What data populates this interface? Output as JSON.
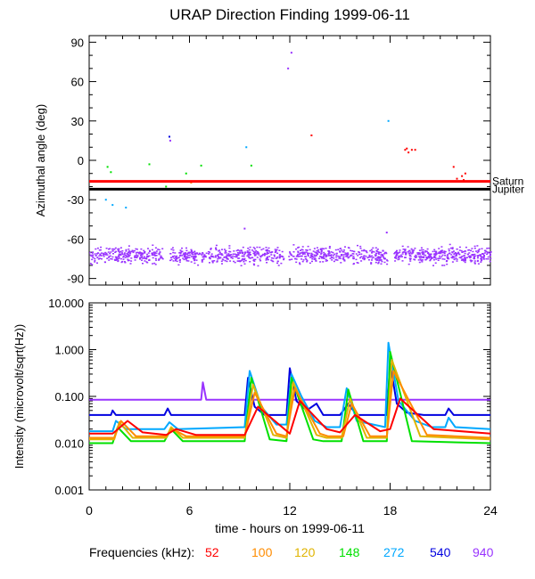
{
  "title": "URAP Direction Finding  1999-06-11",
  "xaxis": {
    "label": "time - hours on 1999-06-11",
    "range": [
      0,
      24
    ],
    "ticks": [
      0,
      6,
      12,
      18,
      24
    ],
    "tick_labels": [
      "0",
      "6",
      "12",
      "18",
      "24"
    ]
  },
  "legend": {
    "label": "Frequencies (kHz):",
    "items": [
      {
        "label": "52",
        "color": "#ff0000"
      },
      {
        "label": "100",
        "color": "#ff8c00"
      },
      {
        "label": "120",
        "color": "#e0b400"
      },
      {
        "label": "148",
        "color": "#00e000"
      },
      {
        "label": "272",
        "color": "#00a8ff"
      },
      {
        "label": "540",
        "color": "#0000e0"
      },
      {
        "label": "940",
        "color": "#9933ff"
      }
    ]
  },
  "chart_data": [
    {
      "type": "scatter",
      "panel": "top",
      "ylabel": "Azimuthal angle (deg)",
      "xlim": [
        0,
        24
      ],
      "ylim": [
        -95,
        95
      ],
      "yticks": [
        90,
        60,
        30,
        0,
        -30,
        -60,
        -90
      ],
      "ytick_labels": [
        "90",
        "60",
        "30",
        "0",
        "-30",
        "-60",
        "-90"
      ],
      "reference_lines": [
        {
          "name": "Saturn",
          "label": "Saturn",
          "y": -16,
          "color": "#ff0000"
        },
        {
          "name": "Jupiter",
          "label": "Jupiter",
          "y": -22,
          "color": "#000000"
        }
      ],
      "band": {
        "series": "940",
        "x_range": [
          0,
          24
        ],
        "y_center": -72,
        "y_spread": 6,
        "color": "#9933ff"
      },
      "points": [
        {
          "x": 1.1,
          "y": -5,
          "series": "148"
        },
        {
          "x": 1.3,
          "y": -9,
          "series": "148"
        },
        {
          "x": 1.0,
          "y": -30,
          "series": "272"
        },
        {
          "x": 1.4,
          "y": -34,
          "series": "272"
        },
        {
          "x": 2.2,
          "y": -36,
          "series": "272"
        },
        {
          "x": 2.0,
          "y": -22,
          "series": "272"
        },
        {
          "x": 3.6,
          "y": -3,
          "series": "148"
        },
        {
          "x": 4.6,
          "y": -20,
          "series": "148"
        },
        {
          "x": 4.8,
          "y": 18,
          "series": "540"
        },
        {
          "x": 4.85,
          "y": 15,
          "series": "940"
        },
        {
          "x": 5.8,
          "y": -10,
          "series": "148"
        },
        {
          "x": 6.1,
          "y": -17,
          "series": "100"
        },
        {
          "x": 6.7,
          "y": -4,
          "series": "148"
        },
        {
          "x": 9.3,
          "y": -52,
          "series": "940"
        },
        {
          "x": 9.4,
          "y": 10,
          "series": "272"
        },
        {
          "x": 9.7,
          "y": -4,
          "series": "148"
        },
        {
          "x": 11.9,
          "y": 70,
          "series": "940"
        },
        {
          "x": 12.1,
          "y": 82,
          "series": "940"
        },
        {
          "x": 13.3,
          "y": 19,
          "series": "52"
        },
        {
          "x": 17.9,
          "y": 30,
          "series": "272"
        },
        {
          "x": 17.8,
          "y": -55,
          "series": "940"
        },
        {
          "x": 18.9,
          "y": 8,
          "series": "52"
        },
        {
          "x": 19.1,
          "y": 6,
          "series": "52"
        },
        {
          "x": 19.3,
          "y": 8,
          "series": "52"
        },
        {
          "x": 19.5,
          "y": 8,
          "series": "52"
        },
        {
          "x": 19.0,
          "y": 9,
          "series": "52"
        },
        {
          "x": 21.8,
          "y": -5,
          "series": "52"
        },
        {
          "x": 22.3,
          "y": -12,
          "series": "52"
        },
        {
          "x": 22.5,
          "y": -10,
          "series": "52"
        },
        {
          "x": 22.4,
          "y": -15,
          "series": "52"
        },
        {
          "x": 22.0,
          "y": -14,
          "series": "52"
        }
      ]
    },
    {
      "type": "line",
      "panel": "bottom",
      "ylabel": "Intensity (microvolt/sqrt(Hz))",
      "yscale": "log",
      "xlim": [
        0,
        24
      ],
      "ylim": [
        0.001,
        10
      ],
      "yticks": [
        10,
        1,
        0.1,
        0.01,
        0.001
      ],
      "ytick_labels": [
        "10.000",
        "1.000",
        "0.100",
        "0.010",
        "0.001"
      ],
      "series": [
        {
          "name": "940",
          "color": "#9933ff",
          "x": [
            0,
            6.7,
            6.8,
            7.0,
            24
          ],
          "y": [
            0.085,
            0.085,
            0.2,
            0.085,
            0.085
          ]
        },
        {
          "name": "540",
          "color": "#0000e0",
          "x": [
            0,
            1.3,
            1.4,
            1.6,
            4.5,
            4.7,
            4.9,
            9.3,
            9.5,
            9.9,
            10.5,
            11.8,
            12.0,
            12.4,
            13.0,
            13.6,
            14.0,
            15.0,
            15.5,
            16.0,
            17.8,
            18.0,
            18.4,
            19.0,
            20.0,
            21.3,
            21.5,
            21.8,
            24
          ],
          "y": [
            0.04,
            0.04,
            0.05,
            0.04,
            0.04,
            0.055,
            0.04,
            0.04,
            0.25,
            0.06,
            0.04,
            0.04,
            0.4,
            0.08,
            0.05,
            0.07,
            0.04,
            0.04,
            0.07,
            0.04,
            0.04,
            0.5,
            0.07,
            0.045,
            0.04,
            0.04,
            0.055,
            0.04,
            0.04
          ]
        },
        {
          "name": "272",
          "color": "#00a8ff",
          "x": [
            0,
            1.4,
            1.6,
            2.2,
            4.5,
            4.8,
            5.3,
            9.3,
            9.6,
            10.3,
            11.2,
            11.8,
            12.1,
            12.7,
            13.5,
            14.2,
            15.0,
            15.4,
            16.0,
            17.7,
            17.9,
            18.5,
            19.5,
            20.5,
            21.3,
            21.5,
            21.9,
            24
          ],
          "y": [
            0.018,
            0.018,
            0.03,
            0.02,
            0.02,
            0.028,
            0.02,
            0.022,
            0.35,
            0.06,
            0.025,
            0.025,
            0.3,
            0.1,
            0.03,
            0.022,
            0.022,
            0.15,
            0.03,
            0.022,
            1.4,
            0.08,
            0.03,
            0.022,
            0.022,
            0.035,
            0.022,
            0.02
          ]
        },
        {
          "name": "148",
          "color": "#00e000",
          "x": [
            0,
            1.4,
            1.7,
            2.5,
            4.5,
            4.9,
            5.6,
            9.3,
            9.7,
            10.8,
            11.8,
            12.1,
            13.4,
            14.0,
            15.1,
            15.5,
            16.4,
            17.8,
            18.0,
            19.3,
            24
          ],
          "y": [
            0.01,
            0.01,
            0.022,
            0.011,
            0.011,
            0.02,
            0.011,
            0.011,
            0.25,
            0.012,
            0.011,
            0.25,
            0.012,
            0.011,
            0.011,
            0.14,
            0.011,
            0.011,
            0.9,
            0.011,
            0.01
          ]
        },
        {
          "name": "120",
          "color": "#e0b400",
          "x": [
            0,
            1.5,
            1.8,
            2.6,
            4.6,
            4.9,
            5.6,
            9.3,
            9.8,
            11.0,
            11.8,
            12.2,
            13.6,
            14.2,
            15.1,
            15.6,
            16.6,
            17.8,
            18.1,
            19.8,
            24
          ],
          "y": [
            0.012,
            0.012,
            0.028,
            0.013,
            0.013,
            0.022,
            0.013,
            0.013,
            0.18,
            0.015,
            0.013,
            0.2,
            0.015,
            0.013,
            0.013,
            0.09,
            0.013,
            0.013,
            0.6,
            0.014,
            0.012
          ]
        },
        {
          "name": "100",
          "color": "#ff8c00",
          "x": [
            0,
            1.5,
            1.9,
            2.8,
            4.6,
            5.0,
            5.8,
            9.3,
            9.9,
            11.2,
            11.8,
            12.3,
            13.8,
            14.3,
            15.2,
            15.7,
            16.8,
            17.8,
            18.2,
            20.2,
            24
          ],
          "y": [
            0.013,
            0.013,
            0.03,
            0.014,
            0.014,
            0.02,
            0.014,
            0.014,
            0.12,
            0.016,
            0.014,
            0.15,
            0.016,
            0.014,
            0.014,
            0.07,
            0.014,
            0.014,
            0.35,
            0.015,
            0.013
          ]
        },
        {
          "name": "52",
          "color": "#ff0000",
          "x": [
            0,
            1.4,
            2.3,
            3.2,
            4.6,
            5.2,
            6.4,
            9.3,
            10.1,
            12.0,
            12.6,
            14.2,
            15.0,
            15.9,
            17.4,
            18.0,
            18.6,
            20.6,
            24
          ],
          "y": [
            0.016,
            0.016,
            0.03,
            0.017,
            0.015,
            0.02,
            0.015,
            0.015,
            0.06,
            0.016,
            0.08,
            0.02,
            0.017,
            0.04,
            0.018,
            0.02,
            0.09,
            0.02,
            0.016
          ]
        }
      ]
    }
  ]
}
